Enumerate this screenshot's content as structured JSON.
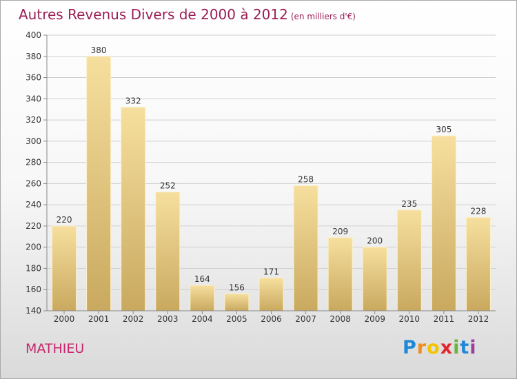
{
  "header": {
    "title": "Autres Revenus Divers de 2000 à 2012",
    "subtitle": "(en milliers d'€)"
  },
  "footer": {
    "commune": "MATHIEU",
    "logo_letters": [
      "P",
      "r",
      "o",
      "x",
      "i",
      "t",
      "i"
    ],
    "logo_colors": [
      "#1e88d8",
      "#f28c1a",
      "#f5c400",
      "#e3262b",
      "#6cb33f",
      "#1e88d8",
      "#9c3fa0"
    ]
  },
  "colors": {
    "title": "#9b1e54",
    "bar_light": "#f6df9e",
    "bar_dark": "#c9a95f",
    "grid": "#cfcfcf"
  },
  "chart_data": {
    "type": "bar",
    "title": "Autres Revenus Divers de 2000 à 2012",
    "subtitle": "(en milliers d'€)",
    "categories": [
      "2000",
      "2001",
      "2002",
      "2003",
      "2004",
      "2005",
      "2006",
      "2007",
      "2008",
      "2009",
      "2010",
      "2011",
      "2012"
    ],
    "values": [
      220,
      380,
      332,
      252,
      164,
      156,
      171,
      258,
      209,
      200,
      235,
      305,
      228
    ],
    "ylim": [
      140,
      400
    ],
    "yticks": [
      140,
      160,
      180,
      200,
      220,
      240,
      260,
      280,
      300,
      320,
      340,
      360,
      380,
      400
    ],
    "grid": true,
    "legend": "none"
  }
}
